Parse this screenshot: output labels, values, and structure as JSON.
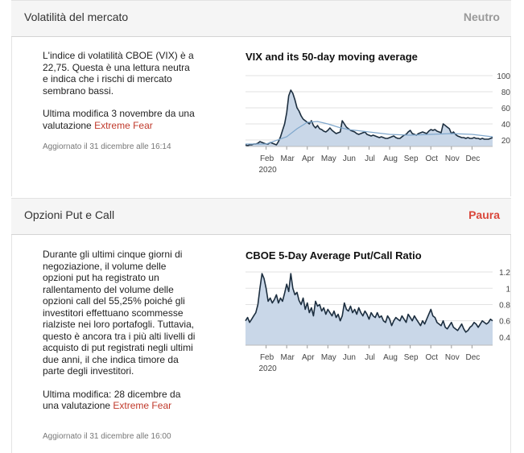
{
  "sections": [
    {
      "title": "Volatilità del mercato",
      "status": "Neutro",
      "status_color": "#999999",
      "description": "L'indice di volatilità CBOE (VIX) è a 22,75. Questa è una lettura neutra e indica che i rischi di mercato sembrano bassi.",
      "modified_prefix": "Ultima modifica 3 novembre da una valutazione",
      "modified_value": "Extreme Fear",
      "updated": "Aggiornato il 31 dicembre alle 16:14",
      "chart_title": "VIX and its 50-day moving average"
    },
    {
      "title": "Opzioni Put e Call",
      "status": "Paura",
      "status_color": "#d9473b",
      "description": "Durante gli ultimi cinque giorni di negoziazione, il volume delle opzioni put ha registrato un rallentamento del volume delle opzioni call del 55,25% poiché gli investitori effettuano scommesse rialziste nei loro portafogli. Tuttavia, questo è ancora tra i più alti livelli di acquisto di put registrati negli ultimi due anni, il che indica timore da parte degli investitori.",
      "modified_prefix": "Ultima modifica: 28 dicembre da una valutazione",
      "modified_value": "Extreme Fear",
      "updated": "Aggiornato il 31 dicembre alle 16:00",
      "chart_title": "CBOE 5-Day Average Put/Call Ratio"
    }
  ],
  "chart_data": [
    {
      "type": "area",
      "title": "VIX and its 50-day moving average",
      "x_ticks": [
        "Feb",
        "Mar",
        "Apr",
        "May",
        "Jun",
        "Jul",
        "Aug",
        "Sep",
        "Oct",
        "Nov",
        "Dec"
      ],
      "x_year_label": "2020",
      "y_ticks": [
        20,
        40,
        60,
        80,
        100
      ],
      "ylim": [
        12,
        108
      ],
      "grid": true,
      "fill_color": "#c9d7e8",
      "line_color": "#1c2e3f",
      "ma_color": "#7fa7cc",
      "series": [
        {
          "x": [
            1.0,
            1.1,
            1.2,
            1.3,
            1.4,
            1.5,
            1.6,
            1.7,
            1.8,
            1.9,
            2.0,
            2.1,
            2.2,
            2.3,
            2.4,
            2.5,
            2.6,
            2.7,
            2.8,
            2.9,
            3.0,
            3.1,
            3.2,
            3.3,
            3.4,
            3.5,
            3.6,
            3.7,
            3.8,
            3.9,
            4.0,
            4.1,
            4.2,
            4.3,
            4.4,
            4.5,
            4.6,
            4.7,
            4.8,
            4.9,
            5.0,
            5.1,
            5.2,
            5.3,
            5.4,
            5.5,
            5.6,
            5.7,
            5.8,
            5.9,
            6.0,
            6.1,
            6.2,
            6.3,
            6.4,
            6.5,
            6.6,
            6.7,
            6.8,
            6.9,
            7.0,
            7.1,
            7.2,
            7.3,
            7.4,
            7.5,
            7.6,
            7.7,
            7.8,
            7.9,
            8.0,
            8.1,
            8.2,
            8.3,
            8.4,
            8.5,
            8.6,
            8.7,
            8.8,
            8.9,
            9.0,
            9.1,
            9.2,
            9.3,
            9.4,
            9.5,
            9.6,
            9.7,
            9.8,
            9.9,
            10.0,
            10.1,
            10.2,
            10.3,
            10.4,
            10.5,
            10.6,
            10.7,
            10.8,
            10.9,
            11.0,
            11.1,
            11.2,
            11.3,
            11.4,
            11.5,
            11.6,
            11.7,
            11.8,
            11.9,
            12.0,
            12.1,
            12.2,
            12.3,
            12.4,
            12.5,
            12.6,
            12.7,
            12.8,
            12.9,
            13.0
          ],
          "y": [
            14,
            13,
            14,
            14,
            15,
            15,
            16,
            18,
            17,
            16,
            15,
            15,
            17,
            16,
            15,
            14,
            18,
            24,
            32,
            40,
            54,
            75,
            82,
            78,
            70,
            60,
            56,
            50,
            46,
            44,
            42,
            40,
            44,
            38,
            35,
            38,
            34,
            33,
            31,
            30,
            32,
            35,
            32,
            30,
            28,
            29,
            30,
            44,
            40,
            36,
            34,
            32,
            31,
            30,
            28,
            27,
            28,
            29,
            30,
            27,
            26,
            25,
            26,
            25,
            24,
            23,
            24,
            23,
            22,
            22,
            23,
            24,
            25,
            23,
            22,
            22,
            24,
            26,
            27,
            30,
            32,
            28,
            27,
            26,
            28,
            29,
            30,
            29,
            28,
            31,
            33,
            32,
            33,
            31,
            30,
            29,
            40,
            38,
            36,
            34,
            28,
            30,
            27,
            25,
            24,
            23,
            23,
            22,
            23,
            22,
            22,
            23,
            22,
            22,
            21,
            22,
            21,
            21,
            21,
            22,
            23
          ]
        },
        {
          "name": "50-day moving average",
          "x": [
            1,
            2,
            3,
            3.5,
            4,
            4.5,
            5,
            5.5,
            6,
            7,
            8,
            9,
            10,
            11,
            12,
            13
          ],
          "y": [
            15,
            15,
            24,
            34,
            42,
            43,
            40,
            36,
            33,
            30,
            27,
            26,
            27,
            28,
            27,
            24
          ]
        }
      ]
    },
    {
      "type": "area",
      "title": "CBOE 5-Day Average Put/Call Ratio",
      "x_ticks": [
        "Feb",
        "Mar",
        "Apr",
        "May",
        "Jun",
        "Jul",
        "Aug",
        "Sep",
        "Oct",
        "Nov",
        "Dec"
      ],
      "x_year_label": "2020",
      "y_ticks": [
        0.4,
        0.6,
        0.8,
        1.0,
        1.2
      ],
      "ylim": [
        0.3,
        1.25
      ],
      "grid": true,
      "fill_color": "#c9d7e8",
      "line_color": "#1c2e3f",
      "series": [
        {
          "x": [
            1.0,
            1.1,
            1.2,
            1.3,
            1.4,
            1.5,
            1.6,
            1.7,
            1.8,
            1.9,
            2.0,
            2.1,
            2.2,
            2.3,
            2.4,
            2.5,
            2.6,
            2.7,
            2.8,
            2.9,
            3.0,
            3.1,
            3.2,
            3.3,
            3.4,
            3.5,
            3.6,
            3.7,
            3.8,
            3.9,
            4.0,
            4.1,
            4.2,
            4.3,
            4.4,
            4.5,
            4.6,
            4.7,
            4.8,
            4.9,
            5.0,
            5.1,
            5.2,
            5.3,
            5.4,
            5.5,
            5.6,
            5.7,
            5.8,
            5.9,
            6.0,
            6.1,
            6.2,
            6.3,
            6.4,
            6.5,
            6.6,
            6.7,
            6.8,
            6.9,
            7.0,
            7.1,
            7.2,
            7.3,
            7.4,
            7.5,
            7.6,
            7.7,
            7.8,
            7.9,
            8.0,
            8.1,
            8.2,
            8.3,
            8.4,
            8.5,
            8.6,
            8.7,
            8.8,
            8.9,
            9.0,
            9.1,
            9.2,
            9.3,
            9.4,
            9.5,
            9.6,
            9.7,
            9.8,
            9.9,
            10.0,
            10.1,
            10.2,
            10.3,
            10.4,
            10.5,
            10.6,
            10.7,
            10.8,
            10.9,
            11.0,
            11.1,
            11.2,
            11.3,
            11.4,
            11.5,
            11.6,
            11.7,
            11.8,
            11.9,
            12.0,
            12.1,
            12.2,
            12.3,
            12.4,
            12.5,
            12.6,
            12.7,
            12.8,
            12.9,
            13.0
          ],
          "y": [
            0.6,
            0.64,
            0.58,
            0.62,
            0.66,
            0.7,
            0.8,
            1.0,
            1.18,
            1.12,
            1.0,
            0.84,
            0.88,
            0.82,
            0.86,
            0.92,
            0.82,
            0.88,
            0.84,
            0.94,
            1.05,
            0.96,
            1.18,
            1.0,
            0.92,
            0.95,
            0.85,
            0.8,
            0.88,
            0.74,
            0.82,
            0.7,
            0.76,
            0.66,
            0.84,
            0.78,
            0.8,
            0.72,
            0.76,
            0.68,
            0.74,
            0.7,
            0.66,
            0.72,
            0.64,
            0.68,
            0.6,
            0.66,
            0.82,
            0.74,
            0.72,
            0.78,
            0.7,
            0.74,
            0.68,
            0.76,
            0.7,
            0.66,
            0.72,
            0.68,
            0.62,
            0.7,
            0.66,
            0.64,
            0.7,
            0.64,
            0.66,
            0.6,
            0.58,
            0.66,
            0.62,
            0.54,
            0.6,
            0.64,
            0.62,
            0.6,
            0.66,
            0.62,
            0.58,
            0.68,
            0.64,
            0.6,
            0.66,
            0.62,
            0.58,
            0.54,
            0.6,
            0.56,
            0.62,
            0.68,
            0.74,
            0.66,
            0.64,
            0.58,
            0.56,
            0.54,
            0.6,
            0.52,
            0.5,
            0.54,
            0.58,
            0.52,
            0.5,
            0.48,
            0.52,
            0.56,
            0.5,
            0.46,
            0.48,
            0.52,
            0.54,
            0.58,
            0.56,
            0.52,
            0.56,
            0.6,
            0.58,
            0.56,
            0.58,
            0.62,
            0.6
          ]
        }
      ]
    }
  ]
}
